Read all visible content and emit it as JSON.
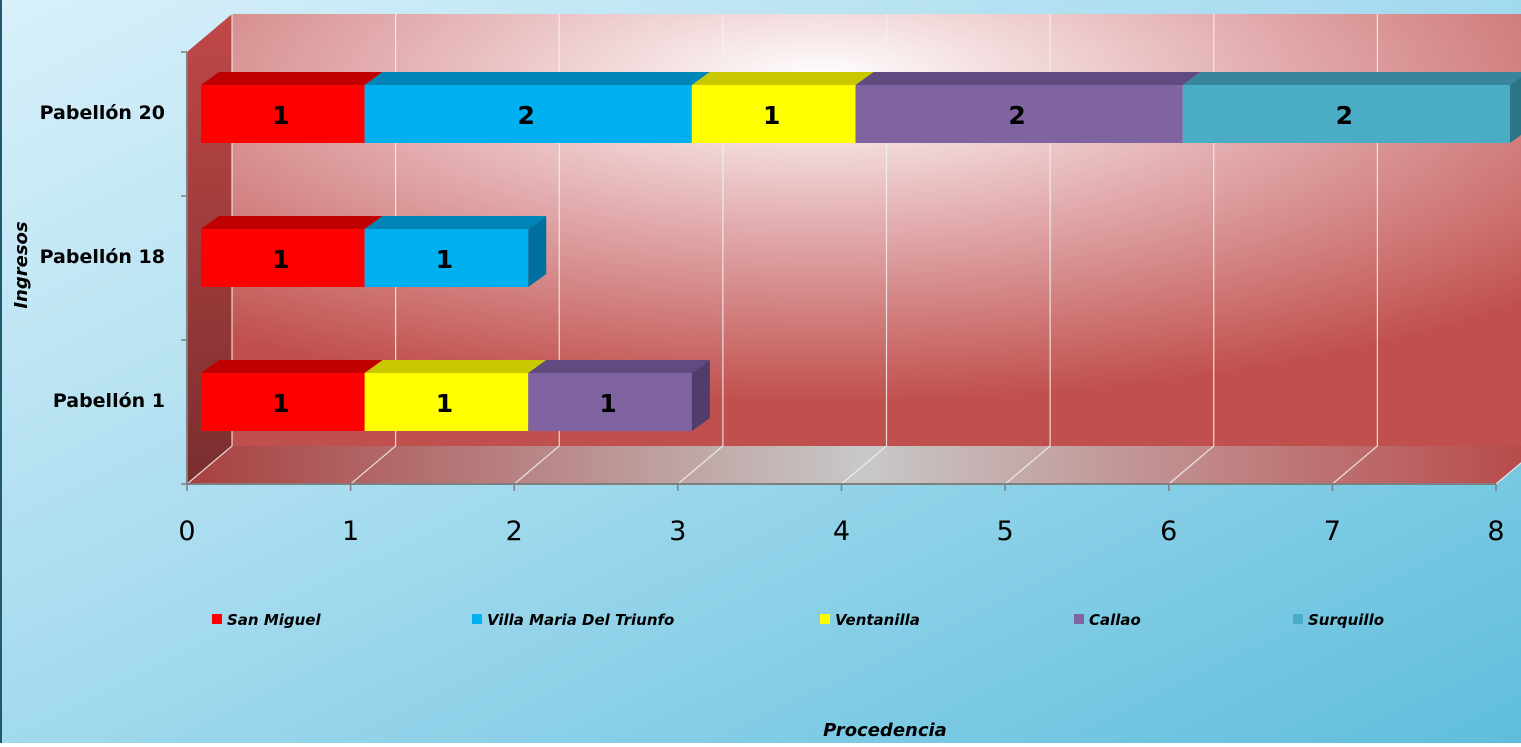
{
  "chart_data": {
    "type": "bar",
    "orientation": "horizontal",
    "stacked": true,
    "three_d": true,
    "categories": [
      "Pabellón 1",
      "Pabellón 18",
      "Pabellón 20"
    ],
    "series": [
      {
        "name": "San Miguel",
        "color": "#FF0000",
        "top_color": "#C00000",
        "side_color": "#A00000",
        "values": [
          1,
          1,
          1
        ]
      },
      {
        "name": "Villa Maria Del Triunfo",
        "color": "#00B0F0",
        "top_color": "#0085B8",
        "side_color": "#0070A0",
        "values": [
          null,
          1,
          2
        ]
      },
      {
        "name": "Ventanilla",
        "color": "#FFFF00",
        "top_color": "#C8C800",
        "side_color": "#B0B000",
        "values": [
          1,
          null,
          1
        ]
      },
      {
        "name": "Callao",
        "color": "#8064A2",
        "top_color": "#604A80",
        "side_color": "#503D6C",
        "values": [
          1,
          null,
          2
        ]
      },
      {
        "name": "Surquillo",
        "color": "#4BACC6",
        "top_color": "#37869C",
        "side_color": "#2E7488",
        "values": [
          null,
          null,
          2
        ]
      }
    ],
    "xlim": [
      0,
      8
    ],
    "x_ticks": [
      "0",
      "1",
      "2",
      "3",
      "4",
      "5",
      "6",
      "7",
      "8"
    ],
    "xlabel": "Procedencia",
    "ylabel": "Ingresos",
    "grid": true,
    "legend_position": "bottom"
  }
}
